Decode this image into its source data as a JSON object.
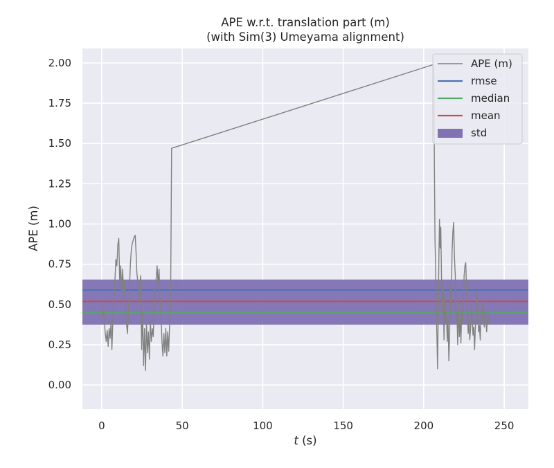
{
  "chart_data": {
    "type": "line",
    "title": "APE w.r.t. translation part (m)",
    "subtitle": "(with Sim(3) Umeyama alignment)",
    "xlabel_var": "t",
    "xlabel_unit": " (s)",
    "ylabel": "APE (m)",
    "xlim": [
      -12,
      265
    ],
    "ylim": [
      -0.15,
      2.09
    ],
    "xticks": [
      0,
      50,
      100,
      150,
      200,
      250
    ],
    "xtick_labels": [
      "0",
      "50",
      "100",
      "150",
      "200",
      "250"
    ],
    "yticks": [
      0.0,
      0.25,
      0.5,
      0.75,
      1.0,
      1.25,
      1.5,
      1.75,
      2.0
    ],
    "ytick_labels": [
      "0.00",
      "0.25",
      "0.50",
      "0.75",
      "1.00",
      "1.25",
      "1.50",
      "1.75",
      "2.00"
    ],
    "grid": true,
    "legend_position": "top-right",
    "legend": [
      {
        "label": "APE (m)",
        "kind": "line",
        "color": "#808080"
      },
      {
        "label": "rmse",
        "kind": "line",
        "color": "#4c72b0"
      },
      {
        "label": "median",
        "kind": "line",
        "color": "#55a868"
      },
      {
        "label": "mean",
        "kind": "line",
        "color": "#c44e52"
      },
      {
        "label": "std",
        "kind": "patch",
        "color": "#8172b2"
      }
    ],
    "stats": {
      "rmse": 0.59,
      "median": 0.448,
      "mean": 0.519,
      "std_low": 0.375,
      "std_high": 0.655
    },
    "series": [
      {
        "name": "APE (m)",
        "color": "#808080",
        "points": [
          [
            0.0,
            0.5
          ],
          [
            0.7,
            0.42
          ],
          [
            1.4,
            0.46
          ],
          [
            2.1,
            0.33
          ],
          [
            2.8,
            0.27
          ],
          [
            3.4,
            0.34
          ],
          [
            4.0,
            0.24
          ],
          [
            4.6,
            0.35
          ],
          [
            5.2,
            0.29
          ],
          [
            5.8,
            0.4
          ],
          [
            6.3,
            0.22
          ],
          [
            7.0,
            0.42
          ],
          [
            7.6,
            0.55
          ],
          [
            8.2,
            0.65
          ],
          [
            8.8,
            0.78
          ],
          [
            9.4,
            0.74
          ],
          [
            10.0,
            0.87
          ],
          [
            10.6,
            0.91
          ],
          [
            11.2,
            0.62
          ],
          [
            11.8,
            0.74
          ],
          [
            12.4,
            0.58
          ],
          [
            13.0,
            0.72
          ],
          [
            13.6,
            0.55
          ],
          [
            14.2,
            0.65
          ],
          [
            14.8,
            0.45
          ],
          [
            15.4,
            0.38
          ],
          [
            16.0,
            0.32
          ],
          [
            16.6,
            0.46
          ],
          [
            17.2,
            0.6
          ],
          [
            17.8,
            0.75
          ],
          [
            18.4,
            0.84
          ],
          [
            19.0,
            0.88
          ],
          [
            19.6,
            0.9
          ],
          [
            20.2,
            0.92
          ],
          [
            20.8,
            0.93
          ],
          [
            21.3,
            0.83
          ],
          [
            21.8,
            0.7
          ],
          [
            22.4,
            0.64
          ],
          [
            23.0,
            0.52
          ],
          [
            23.6,
            0.6
          ],
          [
            24.2,
            0.68
          ],
          [
            24.8,
            0.22
          ],
          [
            25.4,
            0.45
          ],
          [
            26.0,
            0.12
          ],
          [
            26.6,
            0.35
          ],
          [
            27.2,
            0.09
          ],
          [
            27.8,
            0.38
          ],
          [
            28.4,
            0.2
          ],
          [
            29.0,
            0.33
          ],
          [
            29.6,
            0.16
          ],
          [
            30.2,
            0.4
          ],
          [
            30.8,
            0.27
          ],
          [
            31.4,
            0.35
          ],
          [
            32.0,
            0.3
          ],
          [
            32.6,
            0.48
          ],
          [
            33.2,
            0.58
          ],
          [
            33.8,
            0.66
          ],
          [
            34.4,
            0.74
          ],
          [
            35.0,
            0.62
          ],
          [
            35.6,
            0.72
          ],
          [
            36.2,
            0.54
          ],
          [
            36.8,
            0.45
          ],
          [
            37.4,
            0.27
          ],
          [
            38.0,
            0.18
          ],
          [
            38.6,
            0.32
          ],
          [
            39.2,
            0.2
          ],
          [
            39.8,
            0.35
          ],
          [
            40.4,
            0.18
          ],
          [
            41.0,
            0.33
          ],
          [
            41.6,
            0.21
          ],
          [
            42.2,
            0.38
          ],
          [
            42.8,
            0.55
          ],
          [
            43.4,
            1.47
          ],
          [
            206.0,
            1.99
          ],
          [
            206.3,
            1.92
          ],
          [
            206.6,
            1.4
          ],
          [
            207.0,
            0.9
          ],
          [
            207.4,
            0.72
          ],
          [
            207.8,
            0.45
          ],
          [
            208.2,
            0.3
          ],
          [
            208.6,
            0.1
          ],
          [
            209.0,
            0.45
          ],
          [
            209.4,
            0.78
          ],
          [
            209.8,
            1.03
          ],
          [
            210.2,
            0.85
          ],
          [
            210.6,
            0.98
          ],
          [
            211.1,
            0.62
          ],
          [
            211.6,
            0.45
          ],
          [
            212.1,
            0.63
          ],
          [
            212.6,
            0.28
          ],
          [
            213.1,
            0.55
          ],
          [
            213.6,
            0.38
          ],
          [
            214.1,
            0.46
          ],
          [
            214.6,
            0.27
          ],
          [
            215.1,
            0.41
          ],
          [
            215.6,
            0.15
          ],
          [
            216.1,
            0.32
          ],
          [
            216.6,
            0.62
          ],
          [
            217.1,
            0.45
          ],
          [
            217.6,
            0.83
          ],
          [
            218.1,
            0.95
          ],
          [
            218.6,
            1.01
          ],
          [
            219.1,
            0.79
          ],
          [
            219.6,
            0.68
          ],
          [
            220.1,
            0.38
          ],
          [
            220.6,
            0.45
          ],
          [
            221.1,
            0.25
          ],
          [
            221.6,
            0.52
          ],
          [
            222.1,
            0.3
          ],
          [
            222.6,
            0.41
          ],
          [
            223.1,
            0.26
          ],
          [
            223.6,
            0.48
          ],
          [
            224.1,
            0.38
          ],
          [
            224.6,
            0.52
          ],
          [
            225.1,
            0.68
          ],
          [
            225.6,
            0.74
          ],
          [
            226.1,
            0.76
          ],
          [
            226.6,
            0.6
          ],
          [
            227.1,
            0.45
          ],
          [
            227.6,
            0.32
          ],
          [
            228.1,
            0.41
          ],
          [
            228.6,
            0.28
          ],
          [
            229.1,
            0.35
          ],
          [
            229.6,
            0.5
          ],
          [
            230.1,
            0.42
          ],
          [
            230.6,
            0.31
          ],
          [
            231.1,
            0.36
          ],
          [
            231.6,
            0.22
          ],
          [
            232.1,
            0.37
          ],
          [
            232.6,
            0.48
          ],
          [
            233.1,
            0.58
          ],
          [
            233.6,
            0.48
          ],
          [
            234.1,
            0.33
          ],
          [
            234.6,
            0.37
          ],
          [
            235.1,
            0.28
          ],
          [
            235.6,
            0.45
          ],
          [
            236.1,
            0.39
          ],
          [
            236.6,
            0.52
          ],
          [
            237.1,
            0.43
          ],
          [
            237.6,
            0.36
          ],
          [
            238.1,
            0.47
          ],
          [
            238.6,
            0.4
          ],
          [
            239.1,
            0.33
          ],
          [
            239.6,
            0.45
          ],
          [
            240.1,
            0.38
          ],
          [
            240.6,
            0.42
          ],
          [
            241.1,
            0.46
          ]
        ]
      }
    ]
  }
}
